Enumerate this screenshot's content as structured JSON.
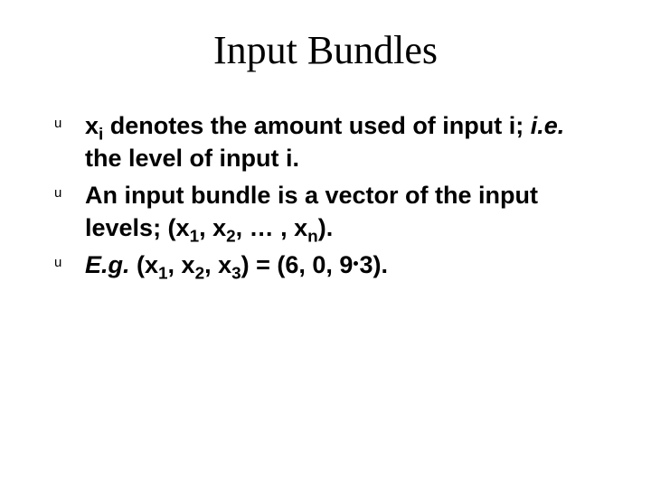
{
  "colors": {
    "background": "#ffffff",
    "text": "#000000"
  },
  "typography": {
    "title_font": "Times New Roman",
    "title_size_pt": 44,
    "body_font": "Arial",
    "body_size_pt": 27,
    "body_weight": "700",
    "line_height": 1.35
  },
  "bullet_marker": "u",
  "title": "Input Bundles",
  "items": [
    {
      "prefix_var": "x",
      "prefix_sub": "i",
      "text_a": " denotes the amount used of input i; ",
      "ital_1": "i.e.",
      "text_b": " the level of input i."
    },
    {
      "text_a": "An input bundle is a vector of the input levels;    (x",
      "sub_1": "1",
      "text_b": ", x",
      "sub_2": "2",
      "text_c": ", … , x",
      "sub_3": "n",
      "text_d": ")."
    },
    {
      "ital_1": "E.g.",
      "text_a": " (x",
      "sub_1": "1",
      "text_b": ", x",
      "sub_2": "2",
      "text_c": ", x",
      "sub_3": "3",
      "text_d": ") = (6, 0, 9",
      "text_e": "3)."
    }
  ]
}
